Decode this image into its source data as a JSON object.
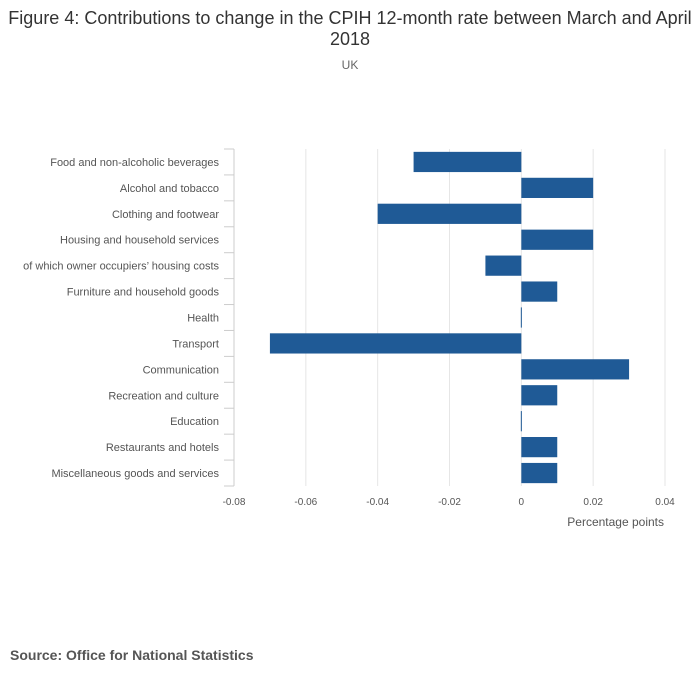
{
  "header": {
    "title": "Figure 4: Contributions to change in the CPIH 12-month rate between March and April 2018",
    "subtitle": "UK"
  },
  "footer": {
    "source": "Source: Office for National Statistics"
  },
  "chart_data": {
    "type": "bar",
    "orientation": "horizontal",
    "title": "Figure 4: Contributions to change in the CPIH 12-month rate between March and April 2018",
    "subtitle": "UK",
    "xlabel": "Percentage points",
    "ylabel": "",
    "xlim": [
      -0.08,
      0.04
    ],
    "xticks": [
      -0.08,
      -0.06,
      -0.04,
      -0.02,
      0,
      0.02,
      0.04
    ],
    "xtick_labels": [
      "-0.08",
      "-0.06",
      "-0.04",
      "-0.02",
      "0",
      "0.02",
      "0.04"
    ],
    "grid": true,
    "legend": "none",
    "bar_color": "#1f5a96",
    "categories": [
      "Food and non-alcoholic beverages",
      "Alcohol and tobacco",
      "Clothing and footwear",
      "Housing and household services",
      "of which owner occupiers’ housing costs",
      "Furniture and household goods",
      "Health",
      "Transport",
      "Communication",
      "Recreation and culture",
      "Education",
      "Restaurants and hotels",
      "Miscellaneous goods and services"
    ],
    "values": [
      -0.03,
      0.02,
      -0.04,
      0.02,
      -0.01,
      0.01,
      0.0,
      -0.07,
      0.03,
      0.01,
      0.0,
      0.01,
      0.01
    ]
  }
}
